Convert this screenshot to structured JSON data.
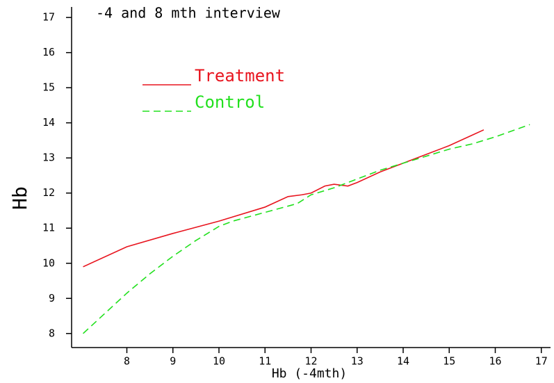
{
  "chart_data": {
    "type": "line",
    "title": "-4 and 8 mth interview",
    "x_label": "Hb (-4mth)",
    "y_label": "Hb",
    "xlim": [
      6.8,
      17.2
    ],
    "ylim": [
      7.6,
      17.3
    ],
    "xticks": [
      8,
      9,
      10,
      11,
      12,
      13,
      14,
      15,
      16,
      17
    ],
    "yticks": [
      8,
      9,
      10,
      11,
      12,
      13,
      14,
      15,
      16,
      17
    ],
    "series": [
      {
        "name": "Treatment",
        "color": "#e8141e",
        "dash": "solid",
        "x": [
          7.05,
          8,
          9,
          10,
          11,
          11.5,
          11.8,
          12,
          12.3,
          12.5,
          12.8,
          13,
          13.5,
          14,
          14.5,
          15,
          15.5,
          15.75
        ],
        "values": [
          9.9,
          10.47,
          10.85,
          11.2,
          11.6,
          11.9,
          11.95,
          12.0,
          12.2,
          12.25,
          12.2,
          12.3,
          12.6,
          12.85,
          13.1,
          13.35,
          13.65,
          13.8
        ]
      },
      {
        "name": "Control",
        "color": "#22e01e",
        "dash": "dashed",
        "x": [
          7.05,
          8,
          8.5,
          9,
          9.5,
          10,
          10.3,
          11,
          11.7,
          12,
          12.5,
          13,
          13.5,
          14,
          15,
          15.5,
          16,
          16.75
        ],
        "values": [
          8.0,
          9.15,
          9.7,
          10.2,
          10.65,
          11.05,
          11.2,
          11.45,
          11.7,
          11.95,
          12.15,
          12.4,
          12.65,
          12.85,
          13.25,
          13.4,
          13.6,
          13.95
        ]
      }
    ]
  }
}
